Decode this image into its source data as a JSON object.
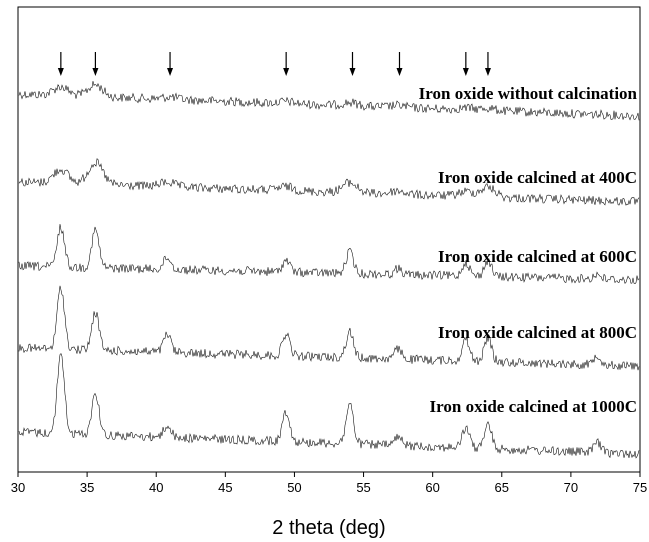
{
  "chart_data": {
    "type": "line",
    "title": "",
    "xlabel": "2 theta (deg)",
    "ylabel": "",
    "xlim": [
      30,
      75
    ],
    "x_ticks": [
      "30",
      "35",
      "40",
      "45",
      "50",
      "55",
      "60",
      "65",
      "70",
      "75"
    ],
    "grid": false,
    "reference_peak_markers": [
      33.1,
      35.6,
      41.0,
      49.4,
      54.2,
      57.6,
      62.4,
      64.0
    ],
    "series": [
      {
        "name": "Iron oxide without calcination",
        "peaks": [
          {
            "x": 33.1,
            "height": 0.22
          },
          {
            "x": 35.6,
            "height": 0.3
          },
          {
            "x": 41.0,
            "height": 0.06
          },
          {
            "x": 49.4,
            "height": 0.05
          },
          {
            "x": 54.0,
            "height": 0.08
          },
          {
            "x": 57.5,
            "height": 0.05
          },
          {
            "x": 62.4,
            "height": 0.05
          },
          {
            "x": 64.0,
            "height": 0.06
          }
        ]
      },
      {
        "name": "Iron oxide calcined at 400C",
        "peaks": [
          {
            "x": 33.1,
            "height": 0.35
          },
          {
            "x": 35.6,
            "height": 0.55
          },
          {
            "x": 40.8,
            "height": 0.12
          },
          {
            "x": 49.4,
            "height": 0.1
          },
          {
            "x": 54.0,
            "height": 0.25
          },
          {
            "x": 57.5,
            "height": 0.08
          },
          {
            "x": 62.4,
            "height": 0.12
          },
          {
            "x": 64.0,
            "height": 0.25
          }
        ]
      },
      {
        "name": "Iron oxide calcined at 600C",
        "peaks": [
          {
            "x": 33.1,
            "height": 1.0
          },
          {
            "x": 35.6,
            "height": 0.95
          },
          {
            "x": 40.8,
            "height": 0.3
          },
          {
            "x": 49.4,
            "height": 0.3
          },
          {
            "x": 54.0,
            "height": 0.55
          },
          {
            "x": 57.5,
            "height": 0.15
          },
          {
            "x": 62.4,
            "height": 0.35
          },
          {
            "x": 64.0,
            "height": 0.4
          },
          {
            "x": 71.9,
            "height": 0.12
          }
        ]
      },
      {
        "name": "Iron oxide calcined at 800C",
        "peaks": [
          {
            "x": 33.1,
            "height": 1.55
          },
          {
            "x": 35.6,
            "height": 0.95
          },
          {
            "x": 40.8,
            "height": 0.45
          },
          {
            "x": 49.4,
            "height": 0.55
          },
          {
            "x": 54.0,
            "height": 0.65
          },
          {
            "x": 57.5,
            "height": 0.25
          },
          {
            "x": 62.4,
            "height": 0.55
          },
          {
            "x": 64.0,
            "height": 0.6
          },
          {
            "x": 71.9,
            "height": 0.25
          }
        ]
      },
      {
        "name": "Iron oxide calcined at 1000C",
        "peaks": [
          {
            "x": 33.1,
            "height": 2.0
          },
          {
            "x": 35.6,
            "height": 1.05
          },
          {
            "x": 40.8,
            "height": 0.3
          },
          {
            "x": 49.4,
            "height": 0.75
          },
          {
            "x": 54.0,
            "height": 1.0
          },
          {
            "x": 57.5,
            "height": 0.2
          },
          {
            "x": 62.4,
            "height": 0.5
          },
          {
            "x": 64.0,
            "height": 0.6
          },
          {
            "x": 71.9,
            "height": 0.25
          }
        ]
      }
    ]
  }
}
